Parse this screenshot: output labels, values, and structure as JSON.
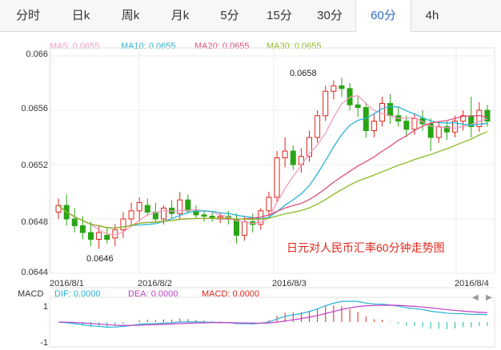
{
  "tabs": [
    {
      "label": "分时",
      "active": false
    },
    {
      "label": "日k",
      "active": false
    },
    {
      "label": "周k",
      "active": false
    },
    {
      "label": "月k",
      "active": false
    },
    {
      "label": "5分",
      "active": false
    },
    {
      "label": "15分",
      "active": false
    },
    {
      "label": "30分",
      "active": false
    },
    {
      "label": "60分",
      "active": true
    },
    {
      "label": "4h",
      "active": false
    }
  ],
  "ma_legend": [
    {
      "text": "MA5: 0.0655",
      "color": "#f29cc0"
    },
    {
      "text": "MA10: 0.0655",
      "color": "#27b3d6"
    },
    {
      "text": "MA20: 0.0655",
      "color": "#e04f7a"
    },
    {
      "text": "MA30: 0.0655",
      "color": "#8dba23"
    }
  ],
  "caption": "日元对人民币汇率60分钟走势图",
  "annotations": {
    "high": "0.0658",
    "low": "0.0646"
  },
  "macd_legend": {
    "title": "MACD",
    "dif": "DIF: 0.0000",
    "dea": "DEA: 0.0000",
    "macd": "MACD: 0.0000",
    "dif_color": "#27b3d6",
    "dea_color": "#c13ec6",
    "macd_color": "#e0261b"
  },
  "colors": {
    "up": "#e0261b",
    "down": "#2aa515"
  },
  "chart_data": {
    "type": "candlestick",
    "title": "日元对人民币汇率60分钟走势图",
    "ylim": [
      0.0644,
      0.066
    ],
    "y_ticks": [
      "0.066",
      "0.0656",
      "0.0652",
      "0.0648",
      "0.0644"
    ],
    "x_ticks": [
      "2016/8/1",
      "2016/8/2",
      "2016/8/3",
      "2016/8/4"
    ],
    "macd_y_ticks": [
      "1",
      "-1"
    ],
    "ohlc": [
      [
        0.06485,
        0.06495,
        0.0648,
        0.0649
      ],
      [
        0.0649,
        0.06498,
        0.06475,
        0.0648
      ],
      [
        0.0648,
        0.06488,
        0.0647,
        0.06475
      ],
      [
        0.06475,
        0.06482,
        0.06465,
        0.0647
      ],
      [
        0.0647,
        0.06478,
        0.0646,
        0.06465
      ],
      [
        0.06465,
        0.06475,
        0.06458,
        0.0647
      ],
      [
        0.06468,
        0.06474,
        0.06462,
        0.06465
      ],
      [
        0.06466,
        0.06476,
        0.0646,
        0.06472
      ],
      [
        0.06472,
        0.06485,
        0.06466,
        0.0648
      ],
      [
        0.0648,
        0.06492,
        0.06474,
        0.06486
      ],
      [
        0.06486,
        0.06496,
        0.06478,
        0.06492
      ],
      [
        0.0649,
        0.06495,
        0.06482,
        0.06485
      ],
      [
        0.06485,
        0.06492,
        0.06478,
        0.0648
      ],
      [
        0.0648,
        0.0649,
        0.06476,
        0.06488
      ],
      [
        0.06488,
        0.06494,
        0.0648,
        0.06484
      ],
      [
        0.06484,
        0.065,
        0.0648,
        0.06494
      ],
      [
        0.06494,
        0.06498,
        0.06484,
        0.06486
      ],
      [
        0.06486,
        0.0649,
        0.0648,
        0.06483
      ],
      [
        0.06483,
        0.06486,
        0.06478,
        0.06482
      ],
      [
        0.06482,
        0.06486,
        0.06478,
        0.06481
      ],
      [
        0.06481,
        0.06485,
        0.06477,
        0.06482
      ],
      [
        0.06482,
        0.06486,
        0.06476,
        0.0648
      ],
      [
        0.0648,
        0.06484,
        0.06462,
        0.06468
      ],
      [
        0.06468,
        0.06482,
        0.06464,
        0.06478
      ],
      [
        0.06478,
        0.06484,
        0.0647,
        0.06476
      ],
      [
        0.06476,
        0.06488,
        0.06472,
        0.06486
      ],
      [
        0.06486,
        0.065,
        0.06482,
        0.06496
      ],
      [
        0.06496,
        0.0653,
        0.06492,
        0.06525
      ],
      [
        0.06525,
        0.0654,
        0.06518,
        0.0653
      ],
      [
        0.0653,
        0.06534,
        0.06516,
        0.0652
      ],
      [
        0.0652,
        0.06532,
        0.06514,
        0.06526
      ],
      [
        0.06526,
        0.06545,
        0.06522,
        0.0654
      ],
      [
        0.0654,
        0.0656,
        0.06536,
        0.06556
      ],
      [
        0.06556,
        0.06578,
        0.06552,
        0.06574
      ],
      [
        0.06574,
        0.06582,
        0.06568,
        0.06578
      ],
      [
        0.06578,
        0.06584,
        0.0657,
        0.06576
      ],
      [
        0.06576,
        0.0658,
        0.0656,
        0.06564
      ],
      [
        0.06564,
        0.0657,
        0.06555,
        0.06562
      ],
      [
        0.06562,
        0.06566,
        0.0654,
        0.06545
      ],
      [
        0.06545,
        0.06558,
        0.0654,
        0.06552
      ],
      [
        0.06552,
        0.0657,
        0.06548,
        0.06565
      ],
      [
        0.06565,
        0.06572,
        0.0655,
        0.06556
      ],
      [
        0.06556,
        0.06562,
        0.06548,
        0.06552
      ],
      [
        0.06552,
        0.06556,
        0.0654,
        0.06546
      ],
      [
        0.06546,
        0.06558,
        0.06542,
        0.06554
      ],
      [
        0.06554,
        0.0656,
        0.06545,
        0.0655
      ],
      [
        0.0655,
        0.06554,
        0.0653,
        0.0654
      ],
      [
        0.0654,
        0.06552,
        0.06536,
        0.06548
      ],
      [
        0.06548,
        0.06552,
        0.06538,
        0.06544
      ],
      [
        0.06544,
        0.06556,
        0.0654,
        0.06552
      ],
      [
        0.06552,
        0.0656,
        0.06545,
        0.06556
      ],
      [
        0.06556,
        0.0657,
        0.0654,
        0.06548
      ],
      [
        0.06548,
        0.06566,
        0.06544,
        0.0656
      ],
      [
        0.0656,
        0.06564,
        0.06548,
        0.06552
      ]
    ]
  }
}
